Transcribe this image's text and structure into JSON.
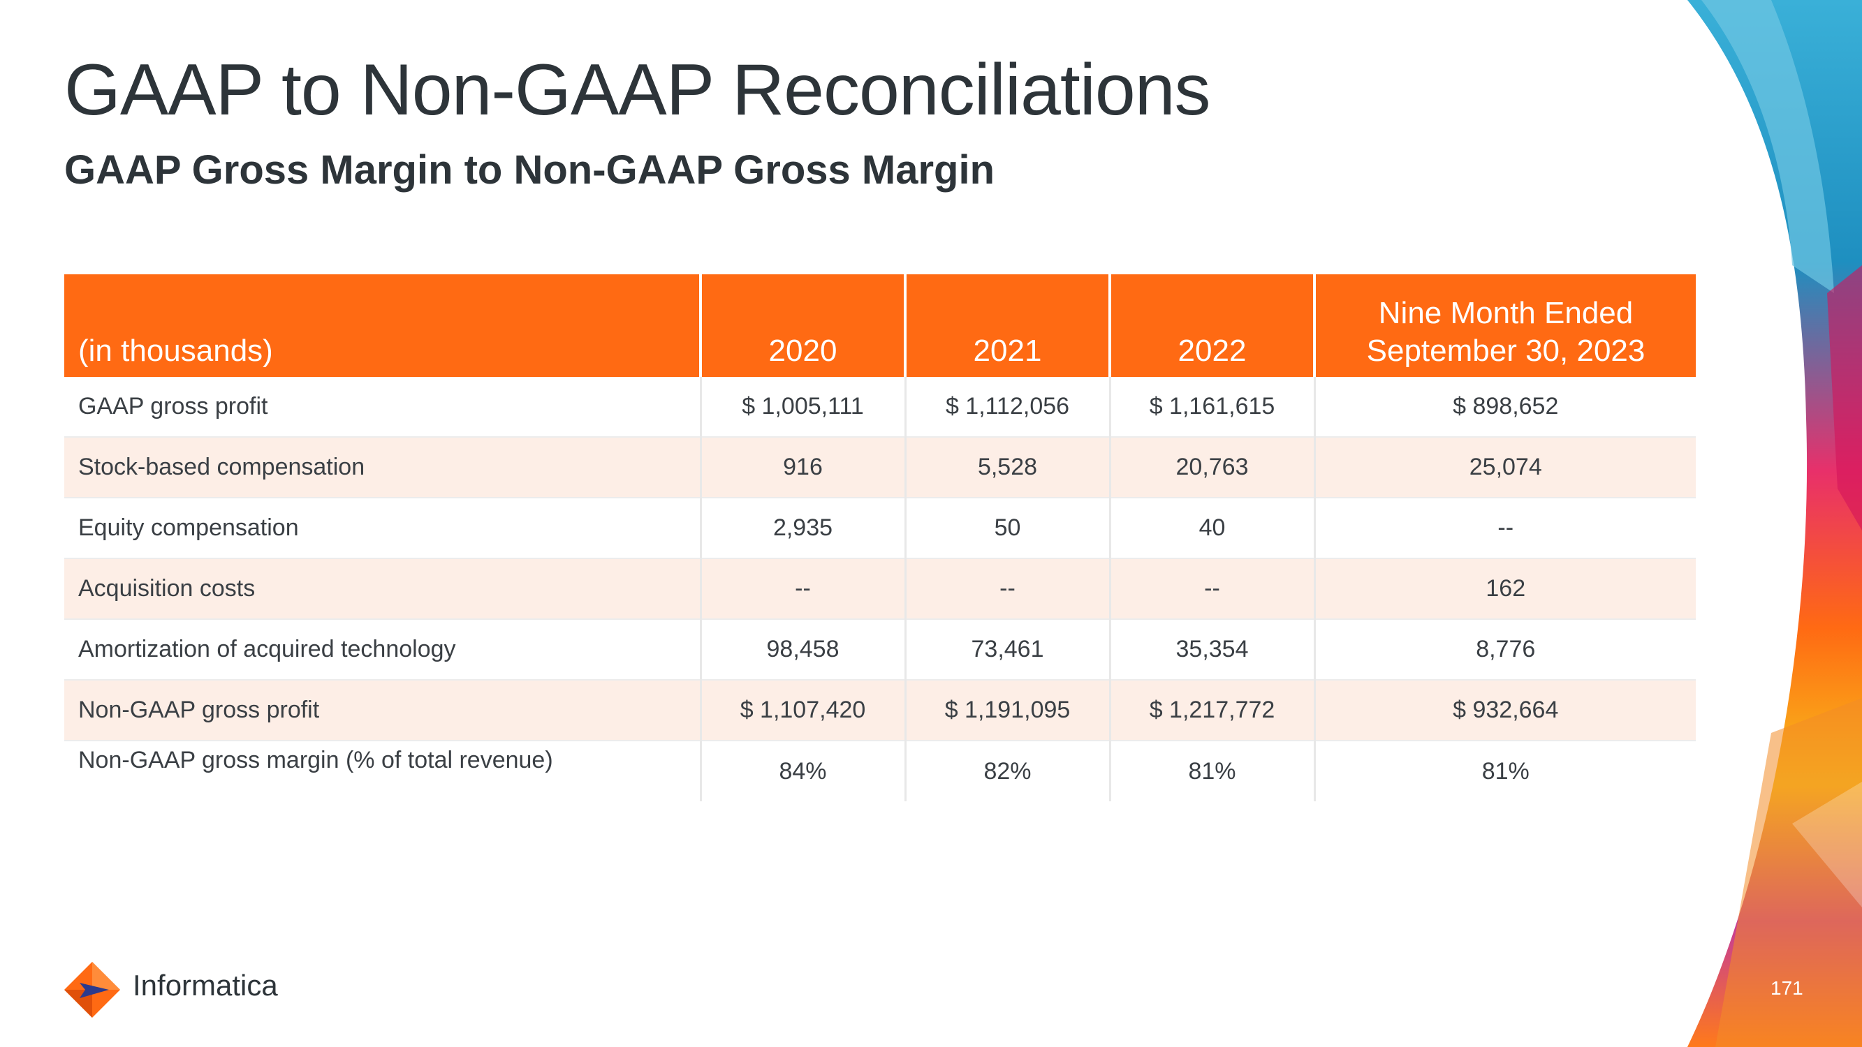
{
  "title": "GAAP to Non-GAAP Reconciliations",
  "subtitle": "GAAP Gross Margin to Non-GAAP Gross Margin",
  "table": {
    "headers": [
      "(in thousands)",
      "2020",
      "2021",
      "2022"
    ],
    "header_last_line1": "Nine Month Ended",
    "header_last_line2": "September 30, 2023",
    "rows": [
      [
        "GAAP gross profit",
        "$ 1,005,111",
        "$ 1,112,056",
        "$ 1,161,615",
        "$ 898,652"
      ],
      [
        "Stock-based compensation",
        "916",
        "5,528",
        "20,763",
        "25,074"
      ],
      [
        "Equity compensation",
        "2,935",
        "50",
        "40",
        "--"
      ],
      [
        "Acquisition costs",
        "--",
        "--",
        "--",
        "162"
      ],
      [
        "Amortization of acquired technology",
        "98,458",
        "73,461",
        "35,354",
        "8,776"
      ],
      [
        "Non-GAAP gross profit",
        "$ 1,107,420",
        "$ 1,191,095",
        "$ 1,217,772",
        "$ 932,664"
      ],
      [
        "Non-GAAP gross margin  (% of total revenue)",
        "84%",
        "82%",
        "81%",
        "81%"
      ]
    ]
  },
  "footer": {
    "brand": "Informatica",
    "page_number": "171"
  },
  "colors": {
    "accent": "#ff6a13",
    "row_shade": "#fdeee6",
    "text": "#2d3439"
  }
}
